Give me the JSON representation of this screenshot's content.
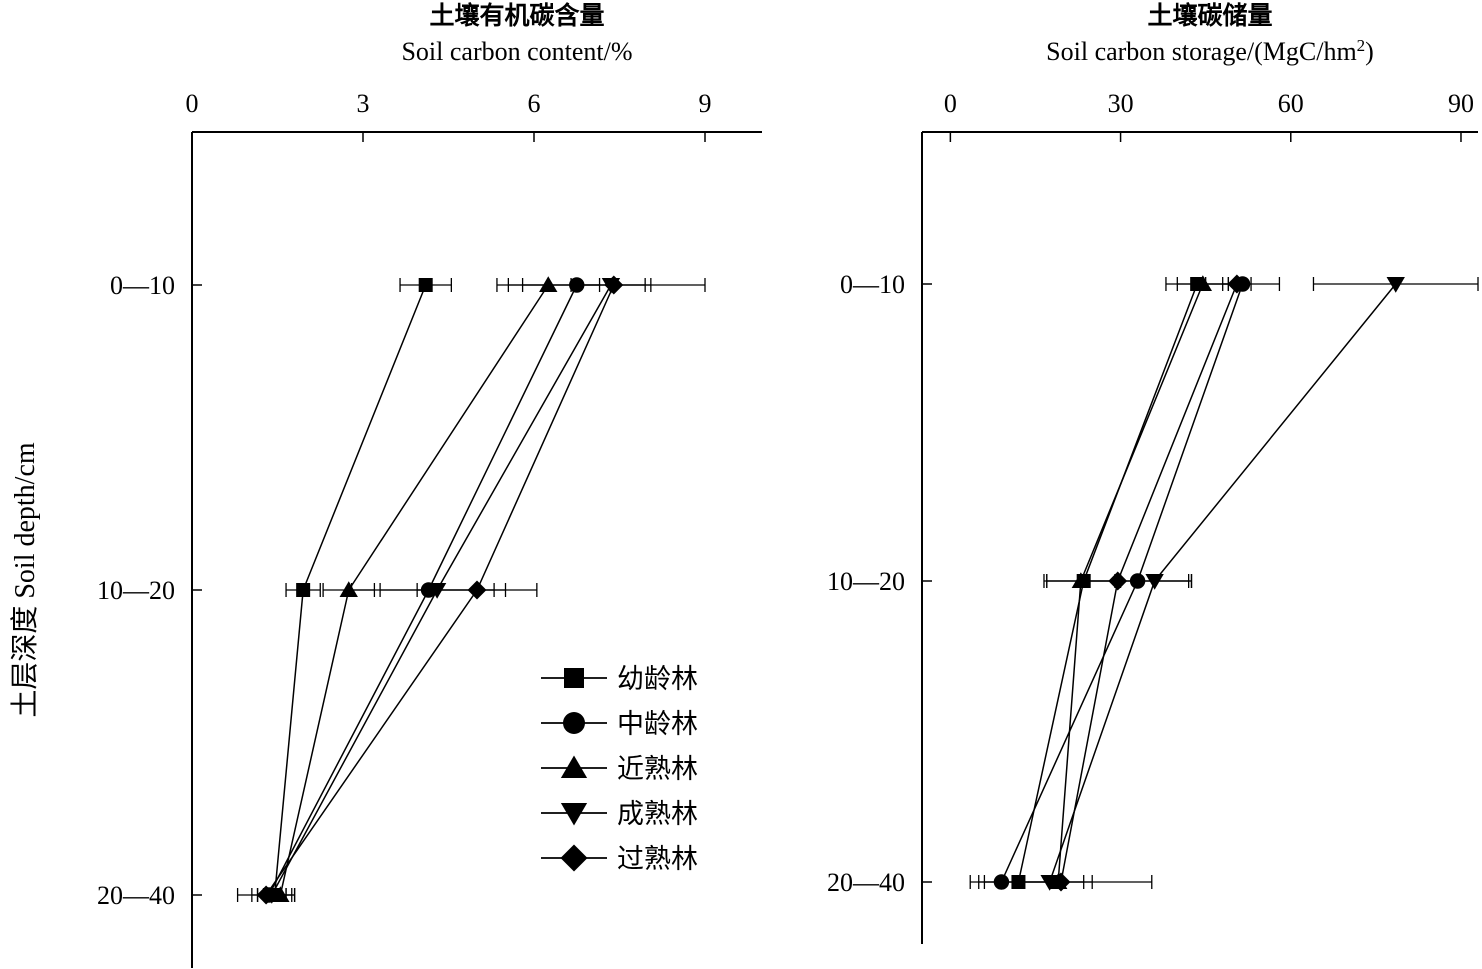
{
  "figure": {
    "ylabel": "土层深度 Soil depth/cm",
    "depth_categories": [
      "0—10",
      "10—20",
      "20—40"
    ]
  },
  "legend": {
    "items": [
      {
        "name": "幼龄林",
        "marker": "square"
      },
      {
        "name": "中龄林",
        "marker": "circle"
      },
      {
        "name": "近熟林",
        "marker": "triangle-up"
      },
      {
        "name": "成熟林",
        "marker": "triangle-down"
      },
      {
        "name": "过熟林",
        "marker": "diamond"
      }
    ]
  },
  "chart_data": [
    {
      "type": "line",
      "title": "土壤有机碳含量",
      "xlabel": "Soil carbon content/%",
      "x_axis_position": "top",
      "xlim": [
        0,
        10
      ],
      "xticks": [
        0,
        3,
        6,
        9
      ],
      "categories": [
        "0—10",
        "10—20",
        "20—40"
      ],
      "series": [
        {
          "name": "幼龄林",
          "values": [
            4.1,
            1.95,
            1.45
          ],
          "errors": [
            0.45,
            0.3,
            0.3
          ]
        },
        {
          "name": "中龄林",
          "values": [
            6.75,
            4.15,
            1.35
          ],
          "errors": [
            1.2,
            1.35,
            0.3
          ]
        },
        {
          "name": "近熟林",
          "values": [
            6.25,
            2.75,
            1.55
          ],
          "errors": [
            0.9,
            0.45,
            0.25
          ]
        },
        {
          "name": "成熟林",
          "values": [
            7.35,
            4.3,
            1.4
          ],
          "errors": [
            0.7,
            1.0,
            0.25
          ]
        },
        {
          "name": "过熟林",
          "values": [
            7.4,
            5.0,
            1.3
          ],
          "errors": [
            1.6,
            1.05,
            0.5
          ]
        }
      ]
    },
    {
      "type": "line",
      "title": "土壤碳储量",
      "xlabel": "Soil carbon storage/(MgC/hm",
      "xlabel_sup": "2",
      "xlabel_tail": ")",
      "x_axis_position": "top",
      "xlim": [
        -5,
        93
      ],
      "xticks": [
        0,
        30,
        60,
        90
      ],
      "categories": [
        "0—10",
        "10—20",
        "20—40"
      ],
      "series": [
        {
          "name": "幼龄林",
          "values": [
            43.5,
            23.5,
            12.0
          ],
          "errors": [
            5.5,
            6.5,
            6.0
          ]
        },
        {
          "name": "中龄林",
          "values": [
            51.5,
            33.0,
            9.0
          ],
          "errors": [
            6.5,
            9.0,
            4.0
          ]
        },
        {
          "name": "近熟林",
          "values": [
            44.5,
            23.0,
            19.0
          ],
          "errors": [
            4.5,
            6.0,
            6.0
          ]
        },
        {
          "name": "成熟林",
          "values": [
            78.5,
            36.0,
            17.5
          ],
          "errors": [
            14.5,
            6.5,
            6.0
          ]
        },
        {
          "name": "过熟林",
          "values": [
            50.5,
            29.5,
            19.5
          ],
          "errors": [
            2.5,
            13.0,
            16.0
          ]
        }
      ]
    }
  ]
}
